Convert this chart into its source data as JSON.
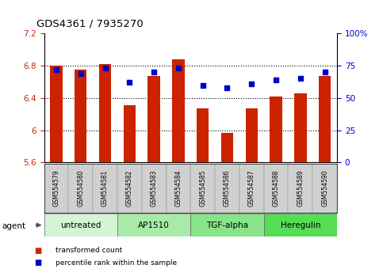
{
  "title": "GDS4361 / 7935270",
  "samples": [
    "GSM554579",
    "GSM554580",
    "GSM554581",
    "GSM554582",
    "GSM554583",
    "GSM554584",
    "GSM554585",
    "GSM554586",
    "GSM554587",
    "GSM554588",
    "GSM554589",
    "GSM554590"
  ],
  "bar_values": [
    6.8,
    6.75,
    6.82,
    6.31,
    6.67,
    6.88,
    6.27,
    5.97,
    6.27,
    6.42,
    6.46,
    6.67
  ],
  "dot_values": [
    72,
    69,
    73,
    62,
    70,
    73,
    60,
    58,
    61,
    64,
    65,
    70
  ],
  "bar_color": "#cc2200",
  "dot_color": "#0000cc",
  "ylim_left": [
    5.6,
    7.2
  ],
  "ylim_right": [
    0,
    100
  ],
  "yticks_left": [
    5.6,
    6.0,
    6.4,
    6.8,
    7.2
  ],
  "yticks_right": [
    0,
    25,
    50,
    75,
    100
  ],
  "ytick_labels_left": [
    "5.6",
    "6",
    "6.4",
    "6.8",
    "7.2"
  ],
  "ytick_labels_right": [
    "0",
    "25",
    "50",
    "75",
    "100%"
  ],
  "groups": [
    {
      "label": "untreated",
      "start": 0,
      "end": 3,
      "color": "#d4f5d4"
    },
    {
      "label": "AP1510",
      "start": 3,
      "end": 6,
      "color": "#a8eba8"
    },
    {
      "label": "TGF-alpha",
      "start": 6,
      "end": 9,
      "color": "#88e488"
    },
    {
      "label": "Heregulin",
      "start": 9,
      "end": 12,
      "color": "#55dd55"
    }
  ],
  "legend_bar_label": "transformed count",
  "legend_dot_label": "percentile rank within the sample",
  "agent_label": "agent",
  "tick_label_color_left": "#cc2200",
  "tick_label_color_right": "#0000cc",
  "grid_yticks": [
    6.0,
    6.4,
    6.8
  ],
  "bar_width": 0.5
}
